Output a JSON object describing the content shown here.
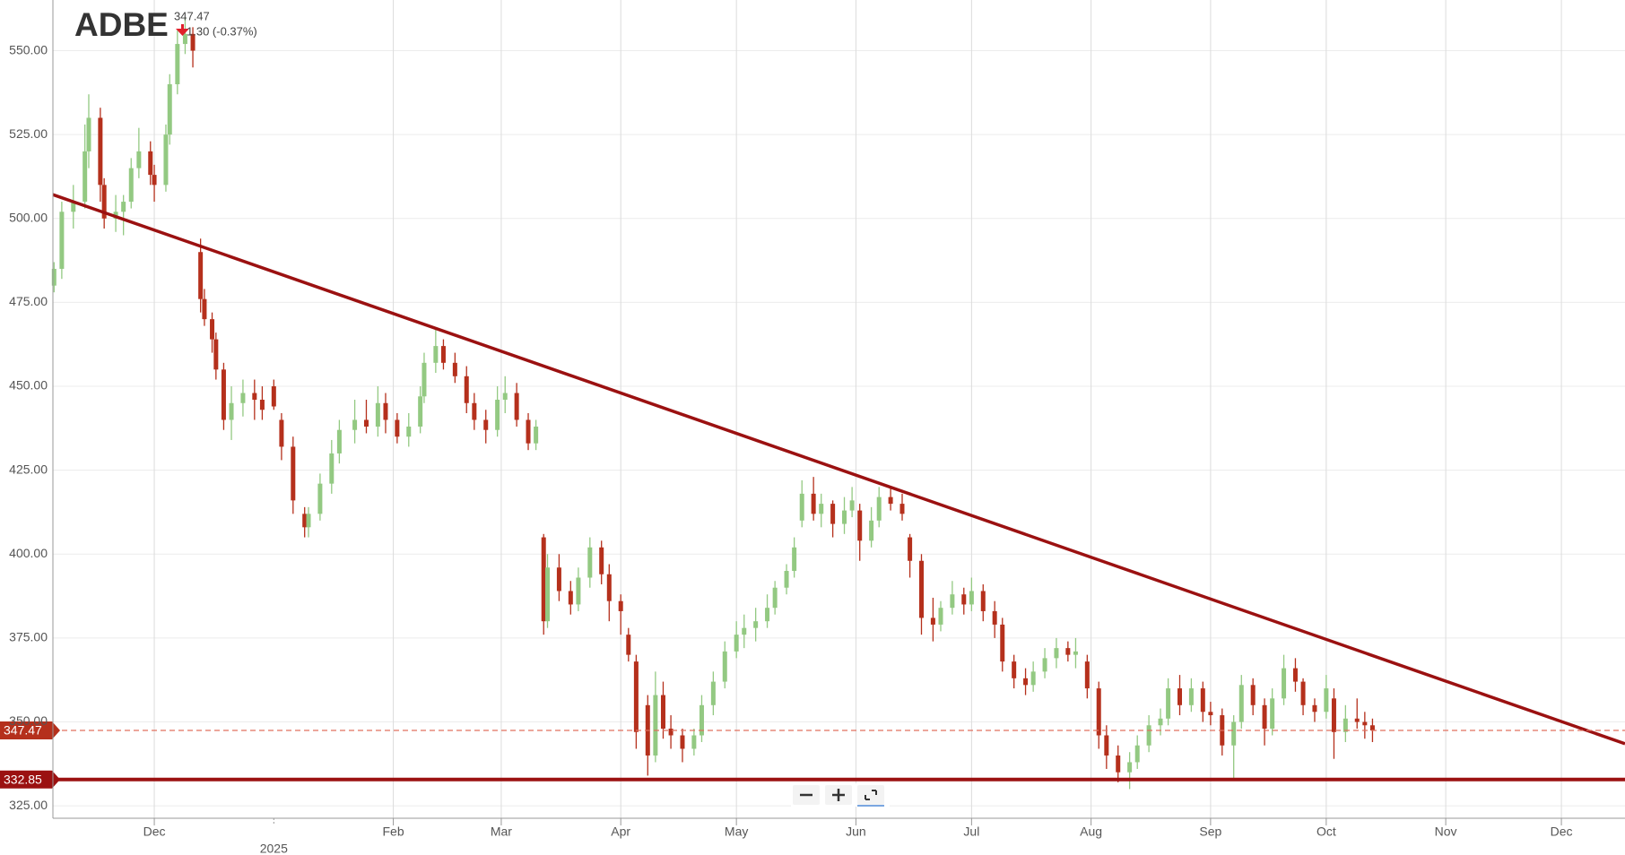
{
  "chart_data": {
    "type": "candlestick",
    "title": "ADBE",
    "price": 347.47,
    "change": "1.30 (-0.37%)",
    "up_color": "#93c982",
    "down_color": "#b5301c",
    "xlim": [
      -26.3,
      381.5
    ],
    "ylim": [
      321.3,
      565.1
    ],
    "xticks": [
      {
        "value": 0,
        "label": "Dec"
      },
      {
        "value": 31,
        "label": "2025"
      },
      {
        "value": 62,
        "label": "Feb"
      },
      {
        "value": 90,
        "label": "Mar"
      },
      {
        "value": 121,
        "label": "Apr"
      },
      {
        "value": 151,
        "label": "May"
      },
      {
        "value": 182,
        "label": "Jun"
      },
      {
        "value": 212,
        "label": "Jul"
      },
      {
        "value": 243,
        "label": "Aug"
      },
      {
        "value": 274,
        "label": "Sep"
      },
      {
        "value": 304,
        "label": "Oct"
      },
      {
        "value": 335,
        "label": "Nov"
      },
      {
        "value": 365,
        "label": "Dec"
      }
    ],
    "yticks": [
      {
        "value": 325,
        "label": "325.00"
      },
      {
        "value": 350,
        "label": "350.00"
      },
      {
        "value": 375,
        "label": "375.00"
      },
      {
        "value": 400,
        "label": "400.00"
      },
      {
        "value": 425,
        "label": "425.00"
      },
      {
        "value": 450,
        "label": "450.00"
      },
      {
        "value": 475,
        "label": "475.00"
      },
      {
        "value": 500,
        "label": "500.00"
      },
      {
        "value": 525,
        "label": "525.00"
      },
      {
        "value": 550,
        "label": "550.00"
      }
    ],
    "grid": true,
    "x": [
      -26,
      -24,
      -21,
      -18,
      -17,
      -14,
      -13,
      -10,
      -8,
      -6,
      -4,
      -1,
      0,
      3,
      4,
      6,
      8,
      10,
      12,
      13,
      15,
      16,
      18,
      20,
      23,
      26,
      28,
      31,
      33,
      36,
      39,
      40,
      43,
      46,
      48,
      52,
      55,
      58,
      60,
      63,
      66,
      69,
      70,
      73,
      75,
      78,
      81,
      83,
      86,
      89,
      91,
      94,
      97,
      99,
      101,
      102,
      105,
      108,
      110,
      113,
      116,
      118,
      121,
      123,
      125,
      128,
      130,
      132,
      134,
      137,
      140,
      142,
      145,
      148,
      151,
      153,
      156,
      159,
      161,
      164,
      166,
      168,
      171,
      173,
      176,
      179,
      181,
      183,
      186,
      188,
      191,
      194,
      196,
      199,
      202,
      204,
      207,
      210,
      212,
      215,
      218,
      220,
      223,
      226,
      228,
      231,
      234,
      237,
      239,
      242,
      245,
      247,
      250,
      253,
      255,
      258,
      261,
      263,
      266,
      269,
      272,
      274,
      277,
      280,
      282,
      285,
      288,
      290,
      293,
      296,
      298,
      301,
      304,
      306,
      309,
      312,
      314,
      316
    ],
    "open": [
      480,
      485,
      502,
      505,
      520,
      530,
      510,
      500,
      502,
      505,
      515,
      520,
      513,
      510,
      525,
      540,
      552,
      555,
      490,
      476,
      470,
      464,
      455,
      440,
      445,
      448,
      446,
      450,
      440,
      432,
      412,
      408,
      412,
      421,
      430,
      437,
      440,
      438,
      445,
      440,
      435,
      438,
      447,
      457,
      462,
      457,
      453,
      445,
      440,
      437,
      446,
      448,
      440,
      433,
      405,
      380,
      396,
      389,
      385,
      393,
      402,
      394,
      386,
      376,
      368,
      355,
      340,
      358,
      348,
      346,
      342,
      346,
      355,
      362,
      371,
      376,
      378,
      380,
      384,
      390,
      395,
      410,
      418,
      412,
      415,
      409,
      413,
      413,
      404,
      410,
      417,
      415,
      405,
      398,
      381,
      379,
      384,
      388,
      385,
      389,
      383,
      379,
      368,
      363,
      361,
      365,
      369,
      372,
      370,
      368,
      360,
      346,
      340,
      335,
      338,
      343,
      349,
      351,
      360,
      355,
      360,
      353,
      352,
      343,
      350,
      361,
      355,
      348,
      357,
      366,
      362,
      355,
      353,
      357,
      347,
      351,
      350,
      349
    ],
    "high": [
      487,
      505,
      510,
      528,
      537,
      533,
      512,
      507,
      507,
      518,
      527,
      523,
      516,
      528,
      543,
      556,
      560,
      557,
      494,
      479,
      472,
      466,
      457,
      450,
      452,
      452,
      450,
      452,
      442,
      435,
      414,
      414,
      424,
      434,
      440,
      446,
      446,
      450,
      448,
      442,
      442,
      450,
      460,
      467,
      464,
      460,
      456,
      448,
      443,
      450,
      453,
      451,
      442,
      440,
      406,
      400,
      400,
      392,
      396,
      405,
      404,
      397,
      388,
      378,
      370,
      358,
      365,
      362,
      352,
      348,
      348,
      358,
      365,
      374,
      380,
      382,
      384,
      388,
      392,
      397,
      405,
      422,
      423,
      418,
      416,
      417,
      420,
      415,
      414,
      420,
      420,
      418,
      406,
      400,
      387,
      386,
      392,
      390,
      393,
      391,
      386,
      381,
      370,
      366,
      368,
      372,
      375,
      374,
      375,
      370,
      362,
      349,
      343,
      341,
      346,
      352,
      354,
      363,
      364,
      363,
      362,
      356,
      354,
      352,
      364,
      363,
      357,
      360,
      370,
      369,
      363,
      357,
      364,
      360,
      355,
      357,
      353,
      351
    ],
    "low": [
      478,
      482,
      497,
      503,
      515,
      505,
      497,
      496,
      495,
      503,
      512,
      510,
      505,
      508,
      522,
      537,
      549,
      545,
      472,
      468,
      460,
      452,
      437,
      434,
      441,
      440,
      440,
      443,
      428,
      412,
      405,
      405,
      410,
      418,
      427,
      433,
      436,
      435,
      436,
      433,
      432,
      436,
      445,
      454,
      455,
      451,
      442,
      437,
      433,
      435,
      442,
      438,
      431,
      431,
      376,
      378,
      386,
      382,
      383,
      390,
      391,
      380,
      376,
      368,
      342,
      334,
      338,
      345,
      342,
      338,
      340,
      344,
      352,
      360,
      369,
      372,
      374,
      378,
      382,
      388,
      393,
      408,
      410,
      408,
      405,
      406,
      411,
      398,
      402,
      408,
      413,
      410,
      393,
      376,
      374,
      377,
      382,
      382,
      383,
      380,
      375,
      365,
      360,
      358,
      359,
      363,
      366,
      368,
      366,
      357,
      342,
      336,
      332,
      330,
      336,
      341,
      346,
      349,
      352,
      353,
      350,
      349,
      340,
      333,
      348,
      352,
      343,
      346,
      355,
      359,
      352,
      350,
      351,
      339,
      344,
      348,
      345,
      344
    ],
    "close": [
      485,
      502,
      505,
      520,
      530,
      510,
      500,
      502,
      505,
      515,
      520,
      513,
      510,
      525,
      540,
      552,
      555,
      550,
      476,
      470,
      464,
      455,
      440,
      445,
      448,
      446,
      443,
      444,
      432,
      416,
      408,
      412,
      421,
      430,
      437,
      440,
      438,
      445,
      440,
      435,
      438,
      447,
      457,
      462,
      457,
      453,
      445,
      440,
      437,
      446,
      448,
      440,
      433,
      438,
      380,
      396,
      389,
      385,
      393,
      402,
      394,
      386,
      383,
      370,
      347,
      340,
      358,
      348,
      346,
      342,
      346,
      355,
      362,
      371,
      376,
      378,
      380,
      384,
      390,
      395,
      402,
      418,
      412,
      415,
      409,
      413,
      416,
      404,
      410,
      417,
      415,
      412,
      398,
      381,
      379,
      384,
      388,
      385,
      389,
      383,
      379,
      368,
      363,
      361,
      365,
      369,
      372,
      370,
      371,
      360,
      346,
      340,
      335,
      338,
      343,
      349,
      351,
      360,
      355,
      360,
      353,
      352,
      343,
      350,
      361,
      355,
      348,
      357,
      366,
      362,
      355,
      353,
      360,
      347,
      351,
      350,
      349,
      347.47
    ],
    "hlines": [
      {
        "value": 347.47,
        "color": "#e0705f",
        "style": "dashed",
        "tag_color": "#b5301c"
      },
      {
        "value": 332.85,
        "color": "#9b1111",
        "style": "solid",
        "tag_color": "#9b1111"
      }
    ],
    "trendlines": [
      {
        "x": [
          -26.3,
          381.5
        ],
        "y": [
          507.1,
          343.5
        ],
        "color": "#9b1111"
      }
    ]
  }
}
